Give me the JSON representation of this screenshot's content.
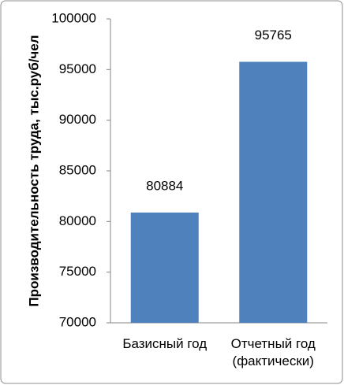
{
  "chart_data": {
    "type": "bar",
    "y_label": "Производительность труда, тыс.руб/чел",
    "categories": [
      "Базисный год",
      "Отчетный год (фактически)"
    ],
    "values": [
      80884,
      95765
    ],
    "color": "#4f81bd",
    "ylim": [
      70000,
      100000
    ],
    "yticks": [
      70000,
      75000,
      80000,
      85000,
      90000,
      95000,
      100000
    ],
    "grid": false
  }
}
